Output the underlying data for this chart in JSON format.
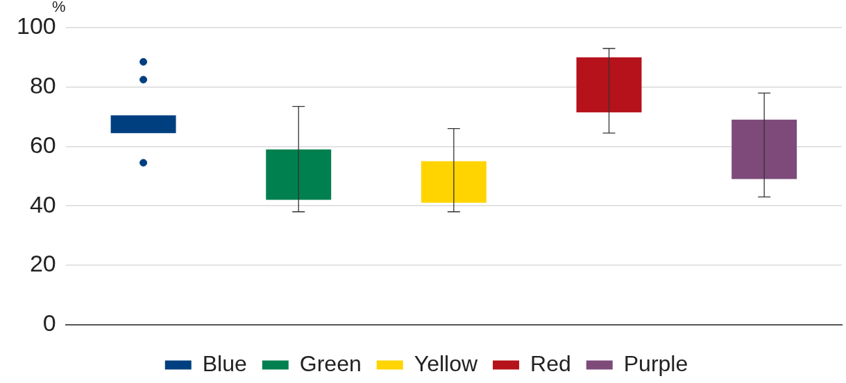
{
  "chart_data": {
    "type": "bar",
    "ylabel": "%",
    "categories": [
      null,
      null,
      null,
      null,
      null
    ],
    "series": [
      {
        "name": "Blue",
        "color": "#003f7f",
        "values": [
          6,
          null,
          null,
          null,
          null
        ],
        "base": [
          64.5,
          null,
          null,
          null,
          null
        ],
        "errors": [
          null,
          null,
          null,
          null,
          null
        ]
      },
      {
        "name": "Green",
        "color": "#00804f",
        "values": [
          null,
          17,
          null,
          null,
          null
        ],
        "base": [
          null,
          42,
          null,
          null,
          null
        ],
        "errors": [
          null,
          [
            38,
            73.5
          ],
          null,
          null,
          null
        ]
      },
      {
        "name": "Yellow",
        "color": "#ffd400",
        "values": [
          null,
          null,
          14,
          null,
          null
        ],
        "base": [
          null,
          null,
          41,
          null,
          null
        ],
        "errors": [
          null,
          null,
          [
            38,
            66
          ],
          null,
          null
        ]
      },
      {
        "name": "Red",
        "color": "#b5121b",
        "values": [
          null,
          null,
          null,
          18.5,
          null
        ],
        "base": [
          null,
          null,
          null,
          71.5,
          null
        ],
        "errors": [
          null,
          null,
          null,
          [
            64.5,
            93
          ],
          null
        ]
      },
      {
        "name": "Purple",
        "color": "#7d4a7a",
        "values": [
          null,
          null,
          null,
          null,
          20
        ],
        "base": [
          null,
          null,
          null,
          null,
          49
        ],
        "errors": [
          null,
          null,
          null,
          null,
          [
            43,
            78
          ]
        ]
      },
      {
        "type": "scatter",
        "color": "#003f7f",
        "values": [
          88.5,
          null,
          null,
          null,
          null
        ]
      },
      {
        "type": "scatter",
        "color": "#003f7f",
        "values": [
          82.5,
          null,
          null,
          null,
          null
        ]
      },
      {
        "type": "scatter",
        "color": "#003f7f",
        "values": [
          54.5,
          null,
          null,
          null,
          null
        ]
      }
    ],
    "ylim": [
      0,
      100
    ],
    "yticks": [
      0,
      20,
      40,
      60,
      80,
      100
    ],
    "grid": "y",
    "legend": "bottom",
    "marker": "circle"
  }
}
